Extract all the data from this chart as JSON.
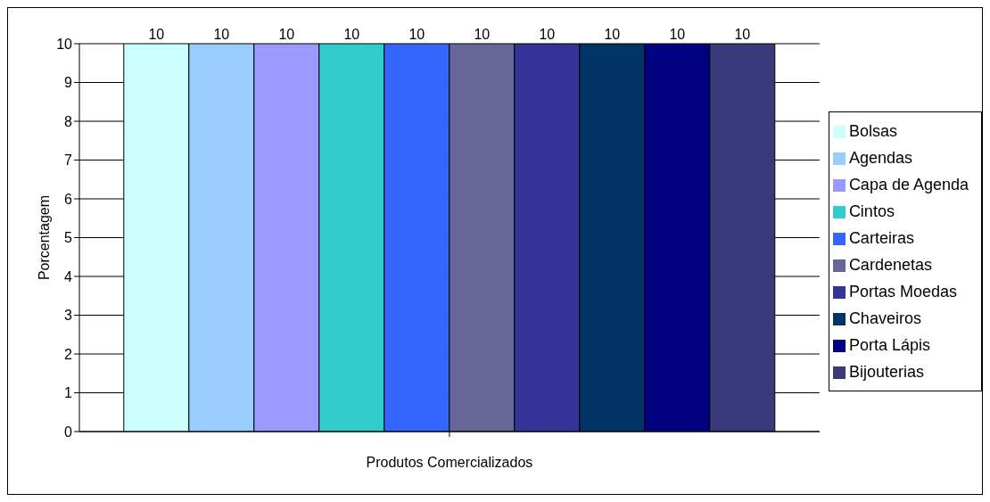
{
  "chart_data": {
    "type": "bar",
    "xlabel": "Produtos Comercializados",
    "ylabel": "Porcentagem",
    "categories": [
      null
    ],
    "series": [
      {
        "name": "Bolsas",
        "color": "#ccffff",
        "values": [
          10
        ]
      },
      {
        "name": "Agendas",
        "color": "#99ccff",
        "values": [
          10
        ]
      },
      {
        "name": "Capa de Agenda",
        "color": "#9999ff",
        "values": [
          10
        ]
      },
      {
        "name": "Cintos",
        "color": "#33cccc",
        "values": [
          10
        ]
      },
      {
        "name": "Carteiras",
        "color": "#3366ff",
        "values": [
          10
        ]
      },
      {
        "name": "Cardenetas",
        "color": "#666699",
        "values": [
          10
        ]
      },
      {
        "name": "Portas Moedas",
        "color": "#333399",
        "values": [
          10
        ]
      },
      {
        "name": "Chaveiros",
        "color": "#003366",
        "values": [
          10
        ]
      },
      {
        "name": "Porta Lápis",
        "color": "#000080",
        "values": [
          10
        ]
      },
      {
        "name": "Bijouterias",
        "color": "#3a3a7a",
        "values": [
          10
        ]
      }
    ],
    "ylim": [
      0,
      10
    ],
    "yticks": [
      0,
      1,
      2,
      3,
      4,
      5,
      6,
      7,
      8,
      9,
      10
    ],
    "grid": "y",
    "legend": "right",
    "data_labels": true
  }
}
